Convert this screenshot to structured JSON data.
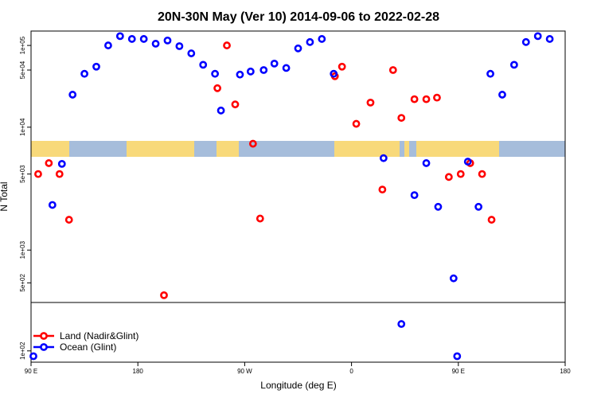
{
  "chart_data": {
    "type": "scatter",
    "title": "20N-30N May (Ver 10)   2014-09-06 to 2022-02-28",
    "xlabel": "Longitude (deg E)",
    "ylabel": "N Total",
    "x_ticks": [
      {
        "value": 90,
        "label": "90 E"
      },
      {
        "value": 180,
        "label": "180"
      },
      {
        "value": 270,
        "label": "90 W"
      },
      {
        "value": 360,
        "label": "0"
      },
      {
        "value": 450,
        "label": "90 E"
      },
      {
        "value": 540,
        "label": "180"
      }
    ],
    "xlim": [
      90,
      540
    ],
    "y_panels": [
      {
        "name": "upper",
        "scale": "log",
        "ylim": [
          6800,
          150000
        ],
        "ticks": [
          {
            "value": 10000,
            "label": "1e+04"
          },
          {
            "value": 50000,
            "label": "5e+04"
          },
          {
            "value": 100000,
            "label": "1e+05"
          }
        ]
      },
      {
        "name": "middle",
        "scale": "log",
        "ylim": [
          330,
          7200
        ],
        "ticks": [
          {
            "value": 500,
            "label": "5e+02"
          },
          {
            "value": 1000,
            "label": "1e+03"
          },
          {
            "value": 5000,
            "label": "5e+03"
          }
        ]
      },
      {
        "name": "lower",
        "scale": "log",
        "ylim": [
          80,
          260
        ],
        "ticks": [
          {
            "value": 100,
            "label": "1e+02"
          }
        ]
      }
    ],
    "series": [
      {
        "name": "Land (Nadir&Glint)",
        "color": "#ff0000",
        "points": [
          [
            96,
            5000
          ],
          [
            105,
            6300
          ],
          [
            114,
            5000
          ],
          [
            122,
            1900
          ],
          [
            202,
            300
          ],
          [
            247,
            30000
          ],
          [
            255,
            100000
          ],
          [
            262,
            19000
          ],
          [
            277,
            9500
          ],
          [
            283,
            1950
          ],
          [
            346,
            42000
          ],
          [
            352,
            55000
          ],
          [
            364,
            11000
          ],
          [
            376,
            20000
          ],
          [
            386,
            3600
          ],
          [
            395,
            50000
          ],
          [
            402,
            13000
          ],
          [
            413,
            22000
          ],
          [
            423,
            22000
          ],
          [
            432,
            23000
          ],
          [
            442,
            4700
          ],
          [
            452,
            5000
          ],
          [
            460,
            6300
          ],
          [
            470,
            5000
          ],
          [
            478,
            1900
          ]
        ]
      },
      {
        "name": "Ocean (Glint)",
        "color": "#0000ff",
        "points": [
          [
            92,
            90
          ],
          [
            108,
            2600
          ],
          [
            116,
            6200
          ],
          [
            125,
            25000
          ],
          [
            135,
            45000
          ],
          [
            145,
            55000
          ],
          [
            155,
            100000
          ],
          [
            165,
            130000
          ],
          [
            175,
            120000
          ],
          [
            185,
            120000
          ],
          [
            195,
            105000
          ],
          [
            205,
            115000
          ],
          [
            215,
            98000
          ],
          [
            225,
            80000
          ],
          [
            235,
            58000
          ],
          [
            245,
            45000
          ],
          [
            250,
            16000
          ],
          [
            266,
            44000
          ],
          [
            275,
            48000
          ],
          [
            286,
            50000
          ],
          [
            295,
            60000
          ],
          [
            305,
            53000
          ],
          [
            315,
            92000
          ],
          [
            325,
            110000
          ],
          [
            335,
            120000
          ],
          [
            345,
            45000
          ],
          [
            387,
            7000
          ],
          [
            402,
            170
          ],
          [
            413,
            3200
          ],
          [
            423,
            6300
          ],
          [
            433,
            2500
          ],
          [
            446,
            550
          ],
          [
            449,
            90
          ],
          [
            458,
            6500
          ],
          [
            467,
            2500
          ],
          [
            477,
            45000
          ],
          [
            487,
            25000
          ],
          [
            497,
            58000
          ],
          [
            507,
            110000
          ],
          [
            517,
            130000
          ],
          [
            527,
            120000
          ]
        ]
      }
    ],
    "legend": {
      "placement": "bottom-left"
    }
  },
  "map_overlay": {
    "land_color": "#f8d97a",
    "ocean_color": "#a6bddb"
  }
}
